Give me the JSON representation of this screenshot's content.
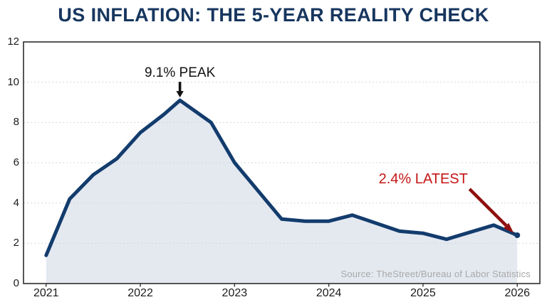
{
  "chart_data": {
    "type": "area",
    "title": "US INFLATION: THE 5-YEAR REALITY CHECK",
    "x": [
      2021.0,
      2021.25,
      2021.5,
      2021.75,
      2022.0,
      2022.25,
      2022.42,
      2022.75,
      2023.0,
      2023.5,
      2023.75,
      2024.0,
      2024.25,
      2024.5,
      2024.75,
      2025.0,
      2025.25,
      2025.75,
      2026.0
    ],
    "values": [
      1.4,
      4.2,
      5.4,
      6.2,
      7.5,
      8.4,
      9.1,
      8.0,
      6.0,
      3.2,
      3.1,
      3.1,
      3.4,
      3.0,
      2.6,
      2.5,
      2.2,
      2.9,
      2.4
    ],
    "xlabel": "",
    "ylabel": "",
    "xlim": [
      2020.76,
      2026.24
    ],
    "ylim": [
      0,
      12
    ],
    "xticks": [
      2021,
      2022,
      2023,
      2024,
      2025,
      2026
    ],
    "yticks": [
      0,
      2,
      4,
      6,
      8,
      10,
      12
    ],
    "grid": "horizontal-dashed",
    "legend": "none",
    "annotations": [
      {
        "id": "peak",
        "text": "9.1% PEAK",
        "x": 2022.42,
        "y": 9.1
      },
      {
        "id": "latest",
        "text": "2.4% LATEST",
        "x": 2026.0,
        "y": 2.4
      }
    ],
    "source": "Source: TheStreet/Bureau of Labor Statistics"
  },
  "colors": {
    "title": "#17365f",
    "line": "#133c6d",
    "area_fill": "#e4e9f0",
    "grid": "#d4d7dc",
    "plot_border": "#2d2d2d",
    "tick_text": "#1b1b1b",
    "peak_text": "#121212",
    "peak_arrow": "#121212",
    "latest_text": "#c51414",
    "latest_arrow": "#8e100e",
    "source_text": "#a8a8a8"
  }
}
